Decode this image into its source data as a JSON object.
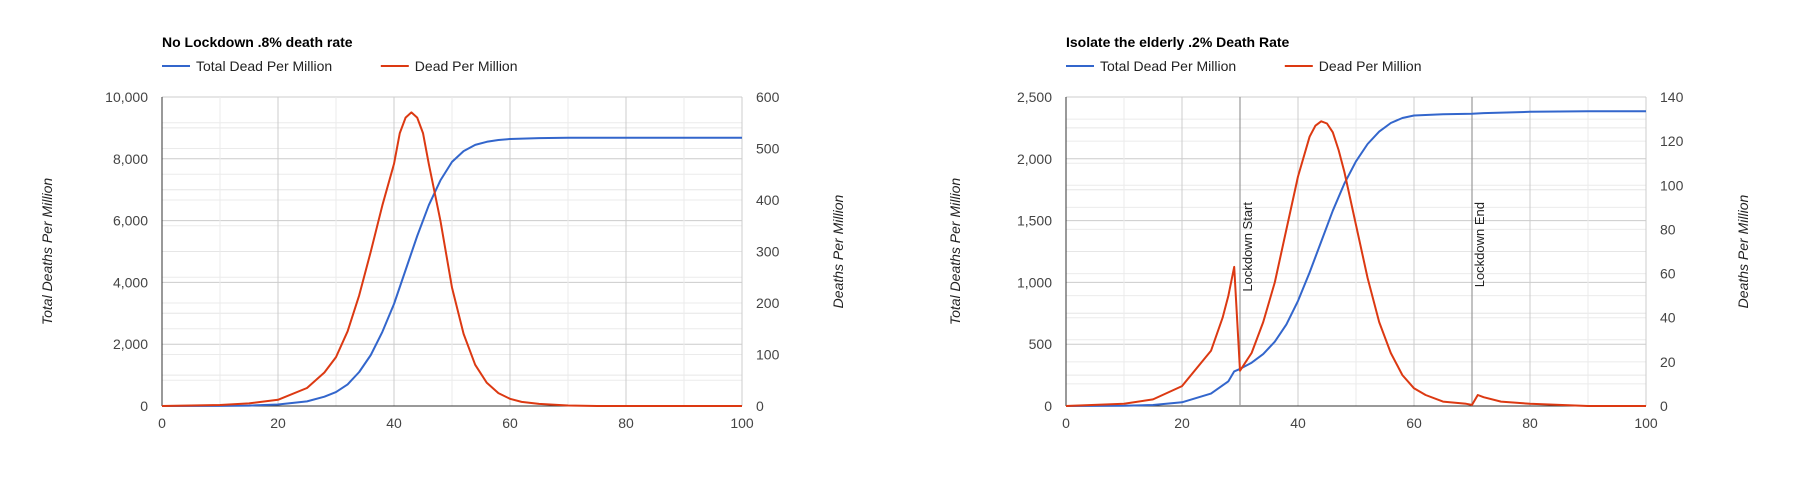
{
  "chart_data": [
    {
      "type": "line",
      "title": "No Lockdown .8% death rate",
      "legend_position": "top-left",
      "grid": true,
      "xlim": [
        0,
        100
      ],
      "x_ticks": [
        "0",
        "20",
        "40",
        "60",
        "80",
        "100"
      ],
      "y_left": {
        "label": "Total Deaths Per Million",
        "ylim": [
          0,
          10000
        ],
        "ticks": [
          "0",
          "2,000",
          "4,000",
          "6,000",
          "8,000",
          "10,000"
        ]
      },
      "y_right": {
        "label": "Deaths Per Million",
        "ylim": [
          0,
          600
        ],
        "ticks": [
          "0",
          "100",
          "200",
          "300",
          "400",
          "500",
          "600"
        ]
      },
      "series": [
        {
          "name": "Total Dead Per Million",
          "axis": "left",
          "color": "#3366cc",
          "x": [
            0,
            10,
            15,
            20,
            25,
            28,
            30,
            32,
            34,
            36,
            38,
            40,
            42,
            44,
            46,
            48,
            50,
            52,
            54,
            56,
            58,
            60,
            65,
            70,
            80,
            100
          ],
          "y": [
            0,
            3,
            12,
            50,
            150,
            300,
            450,
            700,
            1100,
            1650,
            2400,
            3300,
            4400,
            5500,
            6500,
            7300,
            7900,
            8250,
            8450,
            8550,
            8610,
            8640,
            8670,
            8680,
            8680,
            8680
          ]
        },
        {
          "name": "Dead Per Million",
          "axis": "right",
          "color": "#dc3912",
          "x": [
            0,
            10,
            15,
            20,
            25,
            28,
            30,
            32,
            34,
            36,
            38,
            40,
            41,
            42,
            43,
            44,
            45,
            46,
            48,
            50,
            52,
            54,
            56,
            58,
            60,
            62,
            65,
            70,
            75,
            80,
            100
          ],
          "y": [
            0,
            2,
            5,
            12,
            35,
            65,
            95,
            145,
            215,
            300,
            390,
            470,
            530,
            560,
            570,
            560,
            530,
            470,
            360,
            230,
            140,
            80,
            45,
            25,
            14,
            8,
            4,
            1,
            0,
            0,
            0
          ]
        }
      ]
    },
    {
      "type": "line",
      "title": "Isolate the elderly .2% Death Rate",
      "legend_position": "top-left",
      "grid": true,
      "xlim": [
        0,
        100
      ],
      "x_ticks": [
        "0",
        "20",
        "40",
        "60",
        "80",
        "100"
      ],
      "y_left": {
        "label": "Total Deaths Per Million",
        "ylim": [
          0,
          2500
        ],
        "ticks": [
          "0",
          "500",
          "1,000",
          "1,500",
          "2,000",
          "2,500"
        ]
      },
      "y_right": {
        "label": "Deaths Per Million",
        "ylim": [
          0,
          140
        ],
        "ticks": [
          "0",
          "20",
          "40",
          "60",
          "80",
          "100",
          "120",
          "140"
        ]
      },
      "annotations": [
        {
          "x": 30,
          "text": "Lockdown Start"
        },
        {
          "x": 70,
          "text": "Lockdown End"
        }
      ],
      "series": [
        {
          "name": "Total Dead Per Million",
          "axis": "left",
          "color": "#3366cc",
          "x": [
            0,
            10,
            15,
            20,
            25,
            28,
            29,
            30,
            32,
            34,
            36,
            38,
            40,
            42,
            44,
            46,
            48,
            50,
            52,
            54,
            56,
            58,
            60,
            65,
            70,
            72,
            80,
            90,
            100
          ],
          "y": [
            0,
            2,
            8,
            30,
            100,
            200,
            280,
            300,
            350,
            420,
            520,
            660,
            850,
            1080,
            1330,
            1580,
            1800,
            1980,
            2120,
            2220,
            2290,
            2330,
            2350,
            2360,
            2365,
            2370,
            2380,
            2385,
            2385
          ]
        },
        {
          "name": "Dead Per Million",
          "axis": "right",
          "color": "#dc3912",
          "x": [
            0,
            10,
            15,
            20,
            25,
            27,
            28,
            29,
            30,
            32,
            34,
            36,
            38,
            40,
            42,
            43,
            44,
            45,
            46,
            47,
            48,
            50,
            52,
            54,
            56,
            58,
            60,
            62,
            65,
            69,
            70,
            71,
            72,
            75,
            80,
            85,
            90,
            100
          ],
          "y": [
            0,
            1,
            3,
            9,
            25,
            40,
            50,
            63,
            16,
            24,
            38,
            56,
            80,
            104,
            122,
            127,
            129,
            128,
            124,
            116,
            106,
            82,
            58,
            38,
            24,
            14,
            8,
            5,
            2,
            1,
            0.5,
            5,
            4,
            2,
            1,
            0.5,
            0,
            0
          ]
        }
      ]
    }
  ]
}
